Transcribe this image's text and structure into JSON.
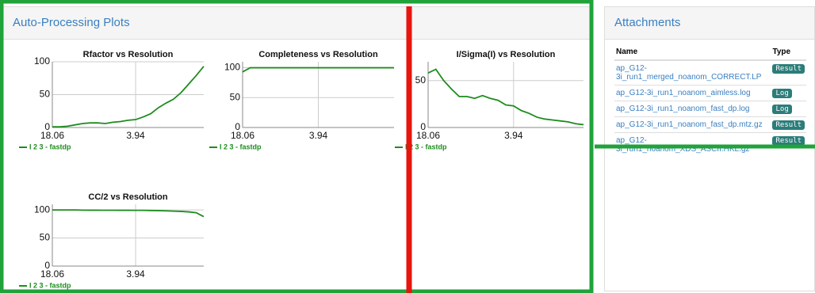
{
  "panel_title": "Auto-Processing Plots",
  "chart_data": [
    {
      "type": "line",
      "title": "Rfactor vs Resolution",
      "categories": [
        "18.06",
        null,
        null,
        null,
        null,
        null,
        null,
        null,
        null,
        null,
        null,
        "3.94",
        null,
        null,
        null,
        null,
        null,
        null,
        null,
        null,
        null
      ],
      "series": [
        {
          "name": "I 2 3 - fastdp",
          "color": "#1e8c1e",
          "values": [
            1,
            1,
            2,
            4,
            6,
            7,
            7,
            6,
            8,
            9,
            11,
            12,
            16,
            21,
            30,
            37,
            43,
            53,
            66,
            79,
            93
          ]
        }
      ],
      "ylim": [
        0,
        100
      ],
      "yticks": [
        0,
        50,
        100
      ],
      "grid": true
    },
    {
      "type": "line",
      "title": "Completeness vs Resolution",
      "categories": [
        "18.06",
        null,
        null,
        null,
        null,
        null,
        null,
        null,
        null,
        null,
        "3.94",
        null,
        null,
        null,
        null,
        null,
        null,
        null,
        null,
        null,
        null
      ],
      "series": [
        {
          "name": "I 2 3 - fastdp",
          "color": "#1e8c1e",
          "values": [
            93,
            100,
            100,
            100,
            100,
            100,
            100,
            100,
            100,
            100,
            100,
            100,
            100,
            100,
            100,
            100,
            100,
            100,
            100,
            100,
            100
          ]
        }
      ],
      "ylim": [
        0,
        110
      ],
      "yticks": [
        0,
        50,
        100
      ],
      "grid": true
    },
    {
      "type": "line",
      "title": "I/Sigma(I) vs Resolution",
      "categories": [
        "18.06",
        null,
        null,
        null,
        null,
        null,
        null,
        null,
        null,
        null,
        null,
        "3.94",
        null,
        null,
        null,
        null,
        null,
        null,
        null,
        null,
        null
      ],
      "series": [
        {
          "name": "I 2 3 - fastdp",
          "color": "#1e8c1e",
          "values": [
            58,
            62,
            50,
            41,
            33,
            33,
            31,
            34,
            31,
            29,
            24,
            23,
            18,
            15,
            11,
            9,
            8,
            7,
            6,
            4,
            3
          ]
        }
      ],
      "ylim": [
        0,
        70
      ],
      "yticks": [
        0,
        50
      ],
      "grid": true
    },
    {
      "type": "line",
      "title": "CC/2 vs Resolution",
      "categories": [
        "18.06",
        null,
        null,
        null,
        null,
        null,
        null,
        null,
        null,
        null,
        null,
        "3.94",
        null,
        null,
        null,
        null,
        null,
        null,
        null,
        null,
        null
      ],
      "series": [
        {
          "name": "I 2 3 - fastdp",
          "color": "#1e8c1e",
          "values": [
            100,
            100,
            100,
            100,
            99.6,
            99.5,
            99.5,
            99.4,
            99.4,
            99.3,
            99.3,
            99.2,
            99.2,
            99,
            98.8,
            98.4,
            97.8,
            97.4,
            96.5,
            95,
            88
          ]
        }
      ],
      "ylim": [
        0,
        110
      ],
      "yticks": [
        0,
        50,
        100
      ],
      "grid": true
    }
  ],
  "attachments": {
    "title": "Attachments",
    "headers": [
      "Name",
      "Type"
    ],
    "rows": [
      [
        "ap_G12-3i_run1_merged_noanom_CORRECT.LP",
        "Result"
      ],
      [
        "ap_G12-3i_run1_noanom_aimless.log",
        "Log"
      ],
      [
        "ap_G12-3i_run1_noanom_fast_dp.log",
        "Log"
      ],
      [
        "ap_G12-3i_run1_noanom_fast_dp.mtz.gz",
        "Result"
      ],
      [
        "ap_G12-3i_run1_noanom_XDS_ASCII.HKL.gz",
        "Result"
      ]
    ]
  }
}
